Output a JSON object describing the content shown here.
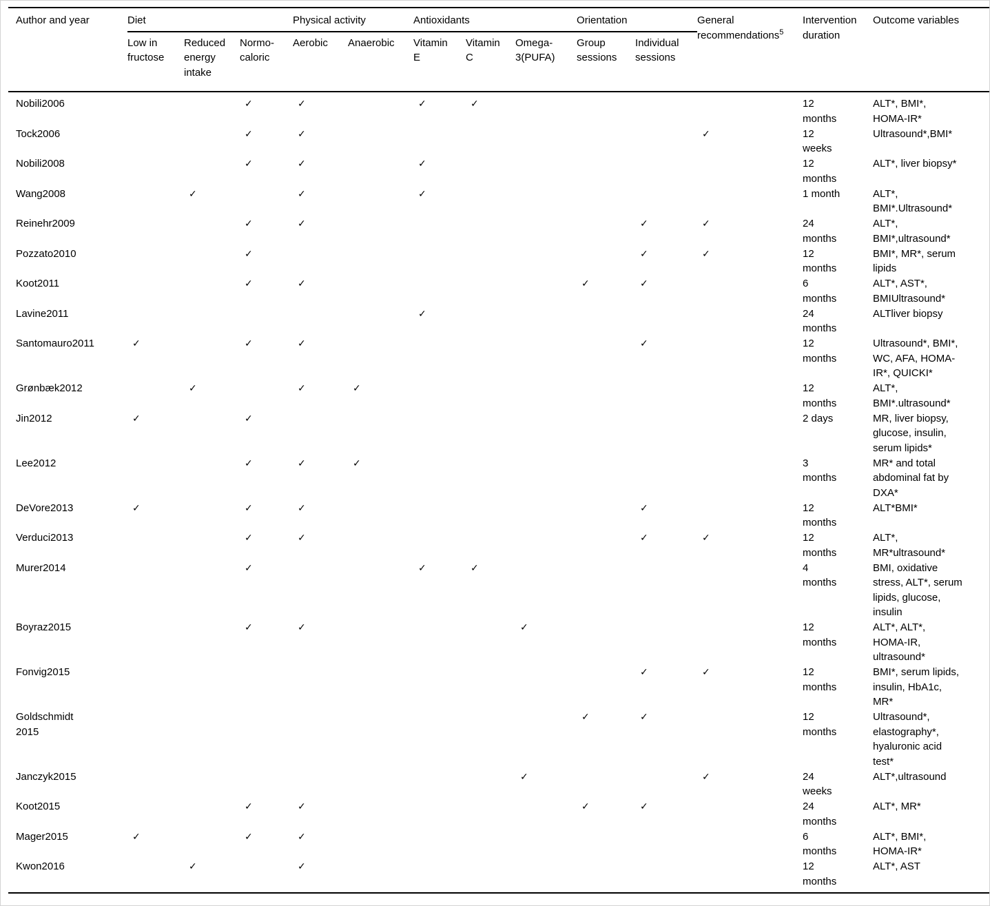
{
  "colors": {
    "background": "#ffffff",
    "text": "#000000",
    "rule": "#000000",
    "outer_border": "#d3d3d3"
  },
  "table": {
    "check_glyph": "✓",
    "header": {
      "author": "Author and year",
      "general_recommendations": "General recommendations",
      "general_recommendations_sup": "5",
      "duration": "Intervention duration",
      "outcomes": "Outcome variables"
    },
    "col_groups": [
      {
        "label": "Diet",
        "span": "3"
      },
      {
        "label": "Physical activity",
        "span": "2"
      },
      {
        "label": "Antioxidants",
        "span": "3"
      },
      {
        "label": "Orientation",
        "span": "2"
      }
    ],
    "sub_columns": {
      "low_fructose": "Low in\nfructose",
      "reduced_energy": "Reduced\nenergy\nintake",
      "normo_caloric": "Normo-\ncaloric",
      "aerobic": "Aerobic",
      "anaerobic": "Anaerobic",
      "vitamin_e": "Vitamin\nE",
      "vitamin_c": "Vitamin\nC",
      "omega_3": "Omega-\n3(PUFA)",
      "group_sessions": "Group\nsessions",
      "individual_sessions": "Individual\nsessions"
    },
    "check_columns": [
      "low_fructose",
      "reduced_energy",
      "normo_caloric",
      "aerobic",
      "anaerobic",
      "vitamin_e",
      "vitamin_c",
      "omega_3",
      "group_sessions",
      "individual_sessions",
      "general_recommendations"
    ],
    "rows": [
      {
        "author": "Nobili2006",
        "checks": [
          "normo_caloric",
          "aerobic",
          "vitamin_e",
          "vitamin_c"
        ],
        "duration": "12\nmonths",
        "outcomes": "ALT*, BMI*, HOMA-IR*"
      },
      {
        "author": "Tock2006",
        "checks": [
          "normo_caloric",
          "aerobic",
          "general_recommendations"
        ],
        "duration": "12\nweeks",
        "outcomes": "Ultrasound*,BMI*"
      },
      {
        "author": "Nobili2008",
        "checks": [
          "normo_caloric",
          "aerobic",
          "vitamin_e"
        ],
        "duration": "12\nmonths",
        "outcomes": "ALT*, liver biopsy*"
      },
      {
        "author": "Wang2008",
        "checks": [
          "reduced_energy",
          "aerobic",
          "vitamin_e"
        ],
        "duration": "1 month",
        "outcomes": "ALT*, BMI*.Ultrasound*"
      },
      {
        "author": "Reinehr2009",
        "checks": [
          "normo_caloric",
          "aerobic",
          "individual_sessions",
          "general_recommendations"
        ],
        "duration": "24\nmonths",
        "outcomes": "ALT*, BMI*,ultrasound*"
      },
      {
        "author": "Pozzato2010",
        "checks": [
          "normo_caloric",
          "individual_sessions",
          "general_recommendations"
        ],
        "duration": "12\nmonths",
        "outcomes": "BMI*, MR*, serum lipids"
      },
      {
        "author": "Koot2011",
        "checks": [
          "normo_caloric",
          "aerobic",
          "group_sessions",
          "individual_sessions"
        ],
        "duration": "6\nmonths",
        "outcomes": "ALT*, AST*, BMIUltrasound*"
      },
      {
        "author": "Lavine2011",
        "checks": [
          "vitamin_e"
        ],
        "duration": "24\nmonths",
        "outcomes": "ALTliver biopsy"
      },
      {
        "author": "Santomauro2011",
        "checks": [
          "low_fructose",
          "normo_caloric",
          "aerobic",
          "individual_sessions"
        ],
        "duration": "12\nmonths",
        "outcomes": "Ultrasound*, BMI*, WC, AFA, HOMA-IR*, QUICKI*"
      },
      {
        "author": "Grønbæk2012",
        "checks": [
          "reduced_energy",
          "aerobic",
          "anaerobic"
        ],
        "duration": "12\nmonths",
        "outcomes": "ALT*, BMI*.ultrasound*"
      },
      {
        "author": "Jin2012",
        "checks": [
          "low_fructose",
          "normo_caloric"
        ],
        "duration": "2 days",
        "outcomes": "MR, liver biopsy, glucose, insulin, serum lipids*"
      },
      {
        "author": "Lee2012",
        "checks": [
          "normo_caloric",
          "aerobic",
          "anaerobic"
        ],
        "duration": "3\nmonths",
        "outcomes": "MR* and total abdominal fat by DXA*"
      },
      {
        "author": "DeVore2013",
        "checks": [
          "low_fructose",
          "normo_caloric",
          "aerobic",
          "individual_sessions"
        ],
        "duration": "12\nmonths",
        "outcomes": "ALT*BMI*"
      },
      {
        "author": "Verduci2013",
        "checks": [
          "normo_caloric",
          "aerobic",
          "individual_sessions",
          "general_recommendations"
        ],
        "duration": "12\nmonths",
        "outcomes": "ALT*, MR*ultrasound*"
      },
      {
        "author": "Murer2014",
        "checks": [
          "normo_caloric",
          "vitamin_e",
          "vitamin_c"
        ],
        "duration": "4\nmonths",
        "outcomes": "BMI, oxidative stress, ALT*, serum lipids, glucose, insulin"
      },
      {
        "author": "Boyraz2015",
        "checks": [
          "normo_caloric",
          "aerobic",
          "omega_3"
        ],
        "duration": "12\nmonths",
        "outcomes": "ALT*, ALT*, HOMA-IR, ultrasound*"
      },
      {
        "author": "Fonvig2015",
        "checks": [
          "individual_sessions",
          "general_recommendations"
        ],
        "duration": "12\nmonths",
        "outcomes": "BMI*, serum lipids, insulin, HbA1c, MR*"
      },
      {
        "author": "Goldschmidt\n2015",
        "checks": [
          "group_sessions",
          "individual_sessions"
        ],
        "duration": "12\nmonths",
        "outcomes": "Ultrasound*, elastography*, hyaluronic acid test*"
      },
      {
        "author": "Janczyk2015",
        "checks": [
          "omega_3",
          "general_recommendations"
        ],
        "duration": "24\nweeks",
        "outcomes": "ALT*,ultrasound"
      },
      {
        "author": "Koot2015",
        "checks": [
          "normo_caloric",
          "aerobic",
          "group_sessions",
          "individual_sessions"
        ],
        "duration": "24\nmonths",
        "outcomes": "ALT*, MR*"
      },
      {
        "author": "Mager2015",
        "checks": [
          "low_fructose",
          "normo_caloric",
          "aerobic"
        ],
        "duration": "6\nmonths",
        "outcomes": "ALT*, BMI*, HOMA-IR*"
      },
      {
        "author": "Kwon2016",
        "checks": [
          "reduced_energy",
          "aerobic"
        ],
        "duration": "12\nmonths",
        "outcomes": "ALT*, AST"
      }
    ]
  }
}
